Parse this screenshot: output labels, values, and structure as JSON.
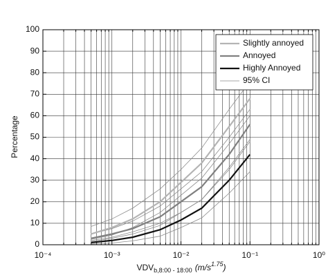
{
  "chart_data": {
    "type": "line",
    "log_x": true,
    "grid": true,
    "legend": "upper right",
    "ylabel": "Percentage",
    "xlabel": {
      "main": "VDV",
      "sub": "b,8:00 - 18:00",
      "unit": "(m/s",
      "unit_sup": "1.75",
      "close": ")"
    },
    "xlim": [
      0.0001,
      1
    ],
    "ylim": [
      0,
      100
    ],
    "xticks": [
      {
        "value": 0.0001,
        "label": "10⁻⁴"
      },
      {
        "value": 0.001,
        "label": "10⁻³"
      },
      {
        "value": 0.01,
        "label": "10⁻²"
      },
      {
        "value": 0.1,
        "label": "10⁻¹"
      },
      {
        "value": 1,
        "label": "10⁰"
      }
    ],
    "xminorticks": [
      0.0002,
      0.0003,
      0.0004,
      0.0005,
      0.0006,
      0.0007,
      0.0008,
      0.0009,
      0.002,
      0.003,
      0.004,
      0.005,
      0.006,
      0.007,
      0.008,
      0.009,
      0.02,
      0.03,
      0.04,
      0.05,
      0.06,
      0.07,
      0.08,
      0.09,
      0.2,
      0.3,
      0.4,
      0.5,
      0.6,
      0.7,
      0.8,
      0.9
    ],
    "yticks": [
      0,
      10,
      20,
      30,
      40,
      50,
      60,
      70,
      80,
      90,
      100
    ],
    "x": [
      0.0005,
      0.001,
      0.002,
      0.005,
      0.01,
      0.02,
      0.05,
      0.1
    ],
    "series": [
      {
        "name": "Slightly annoyed",
        "color": "#b4b4b4",
        "values": [
          5,
          8,
          12,
          20,
          29,
          38,
          55,
          68
        ]
      },
      {
        "name": "Annoyed",
        "color": "#808080",
        "values": [
          3,
          5,
          7.5,
          13,
          20,
          27,
          42,
          56
        ]
      },
      {
        "name": "Highly Annoyed",
        "color": "#111111",
        "values": [
          1,
          2,
          3.5,
          7,
          11.5,
          17,
          30,
          42
        ]
      }
    ],
    "ci": {
      "name": "95% CI",
      "color": "#8a8a8a",
      "lines": [
        [
          8.5,
          12,
          17,
          26,
          35,
          45,
          63,
          76
        ],
        [
          2.5,
          4.5,
          8,
          15,
          23,
          31,
          47,
          60
        ],
        [
          5,
          7.5,
          11,
          18,
          26,
          34,
          50,
          63
        ],
        [
          1.5,
          3,
          5,
          9,
          15,
          21,
          35,
          48
        ],
        [
          2,
          3.5,
          6,
          10,
          15,
          21,
          36,
          49
        ],
        [
          0.3,
          0.8,
          1.8,
          4,
          8,
          12.5,
          24,
          34
        ]
      ]
    }
  }
}
